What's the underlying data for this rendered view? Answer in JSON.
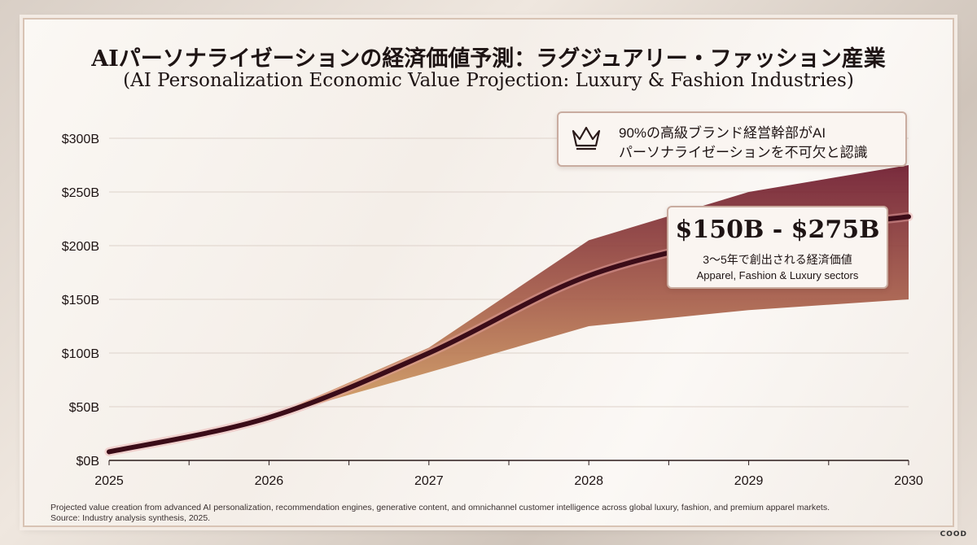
{
  "title": "AIパーソナライゼーションの経済価値予測：ラグジュアリー・ファッション産業",
  "subtitle": "(AI Personalization Economic Value Projection: Luxury & Fashion Industries)",
  "callout_top": {
    "icon": "crown-icon",
    "line1": "90%の高級ブランド経営幹部がAI",
    "line2": "パーソナライゼーションを不可欠と認識"
  },
  "callout_value": {
    "range": "$150B - $275B",
    "line1": "3〜5年で創出される経済価値",
    "line2": "Apparel, Fashion & Luxury sectors"
  },
  "footnote": {
    "line1": "Projected value creation from advanced AI personalization, recommendation engines, generative content, and omnichannel customer intelligence across global luxury, fashion, and premium apparel markets.",
    "line2": "Source: Industry analysis synthesis, 2025."
  },
  "logo_text": "COOD",
  "chart_data": {
    "type": "area",
    "x": [
      2025,
      2026,
      2027,
      2028,
      2029,
      2030
    ],
    "x_tick_labels": [
      "2025",
      "2026",
      "2027",
      "2028",
      "2029",
      "2030"
    ],
    "y_tick_values": [
      0,
      50,
      100,
      150,
      200,
      250,
      300
    ],
    "y_tick_labels": [
      "$0B",
      "$50B",
      "$100B",
      "$150B",
      "$200B",
      "$250B",
      "$300B"
    ],
    "ylim": [
      0,
      300
    ],
    "xlim": [
      2025,
      2030
    ],
    "grid": true,
    "series": [
      {
        "role": "upper-bound",
        "values": [
          8,
          40,
          105,
          205,
          250,
          275
        ]
      },
      {
        "role": "lower-bound",
        "values": [
          8,
          40,
          82,
          125,
          140,
          150
        ]
      },
      {
        "role": "central-projection",
        "values": [
          8,
          40,
          100,
          172,
          208,
          227
        ]
      }
    ],
    "colors": {
      "upper": "#6e1a2e",
      "lower": "#d9a85c",
      "line": "#3b0c18"
    }
  }
}
